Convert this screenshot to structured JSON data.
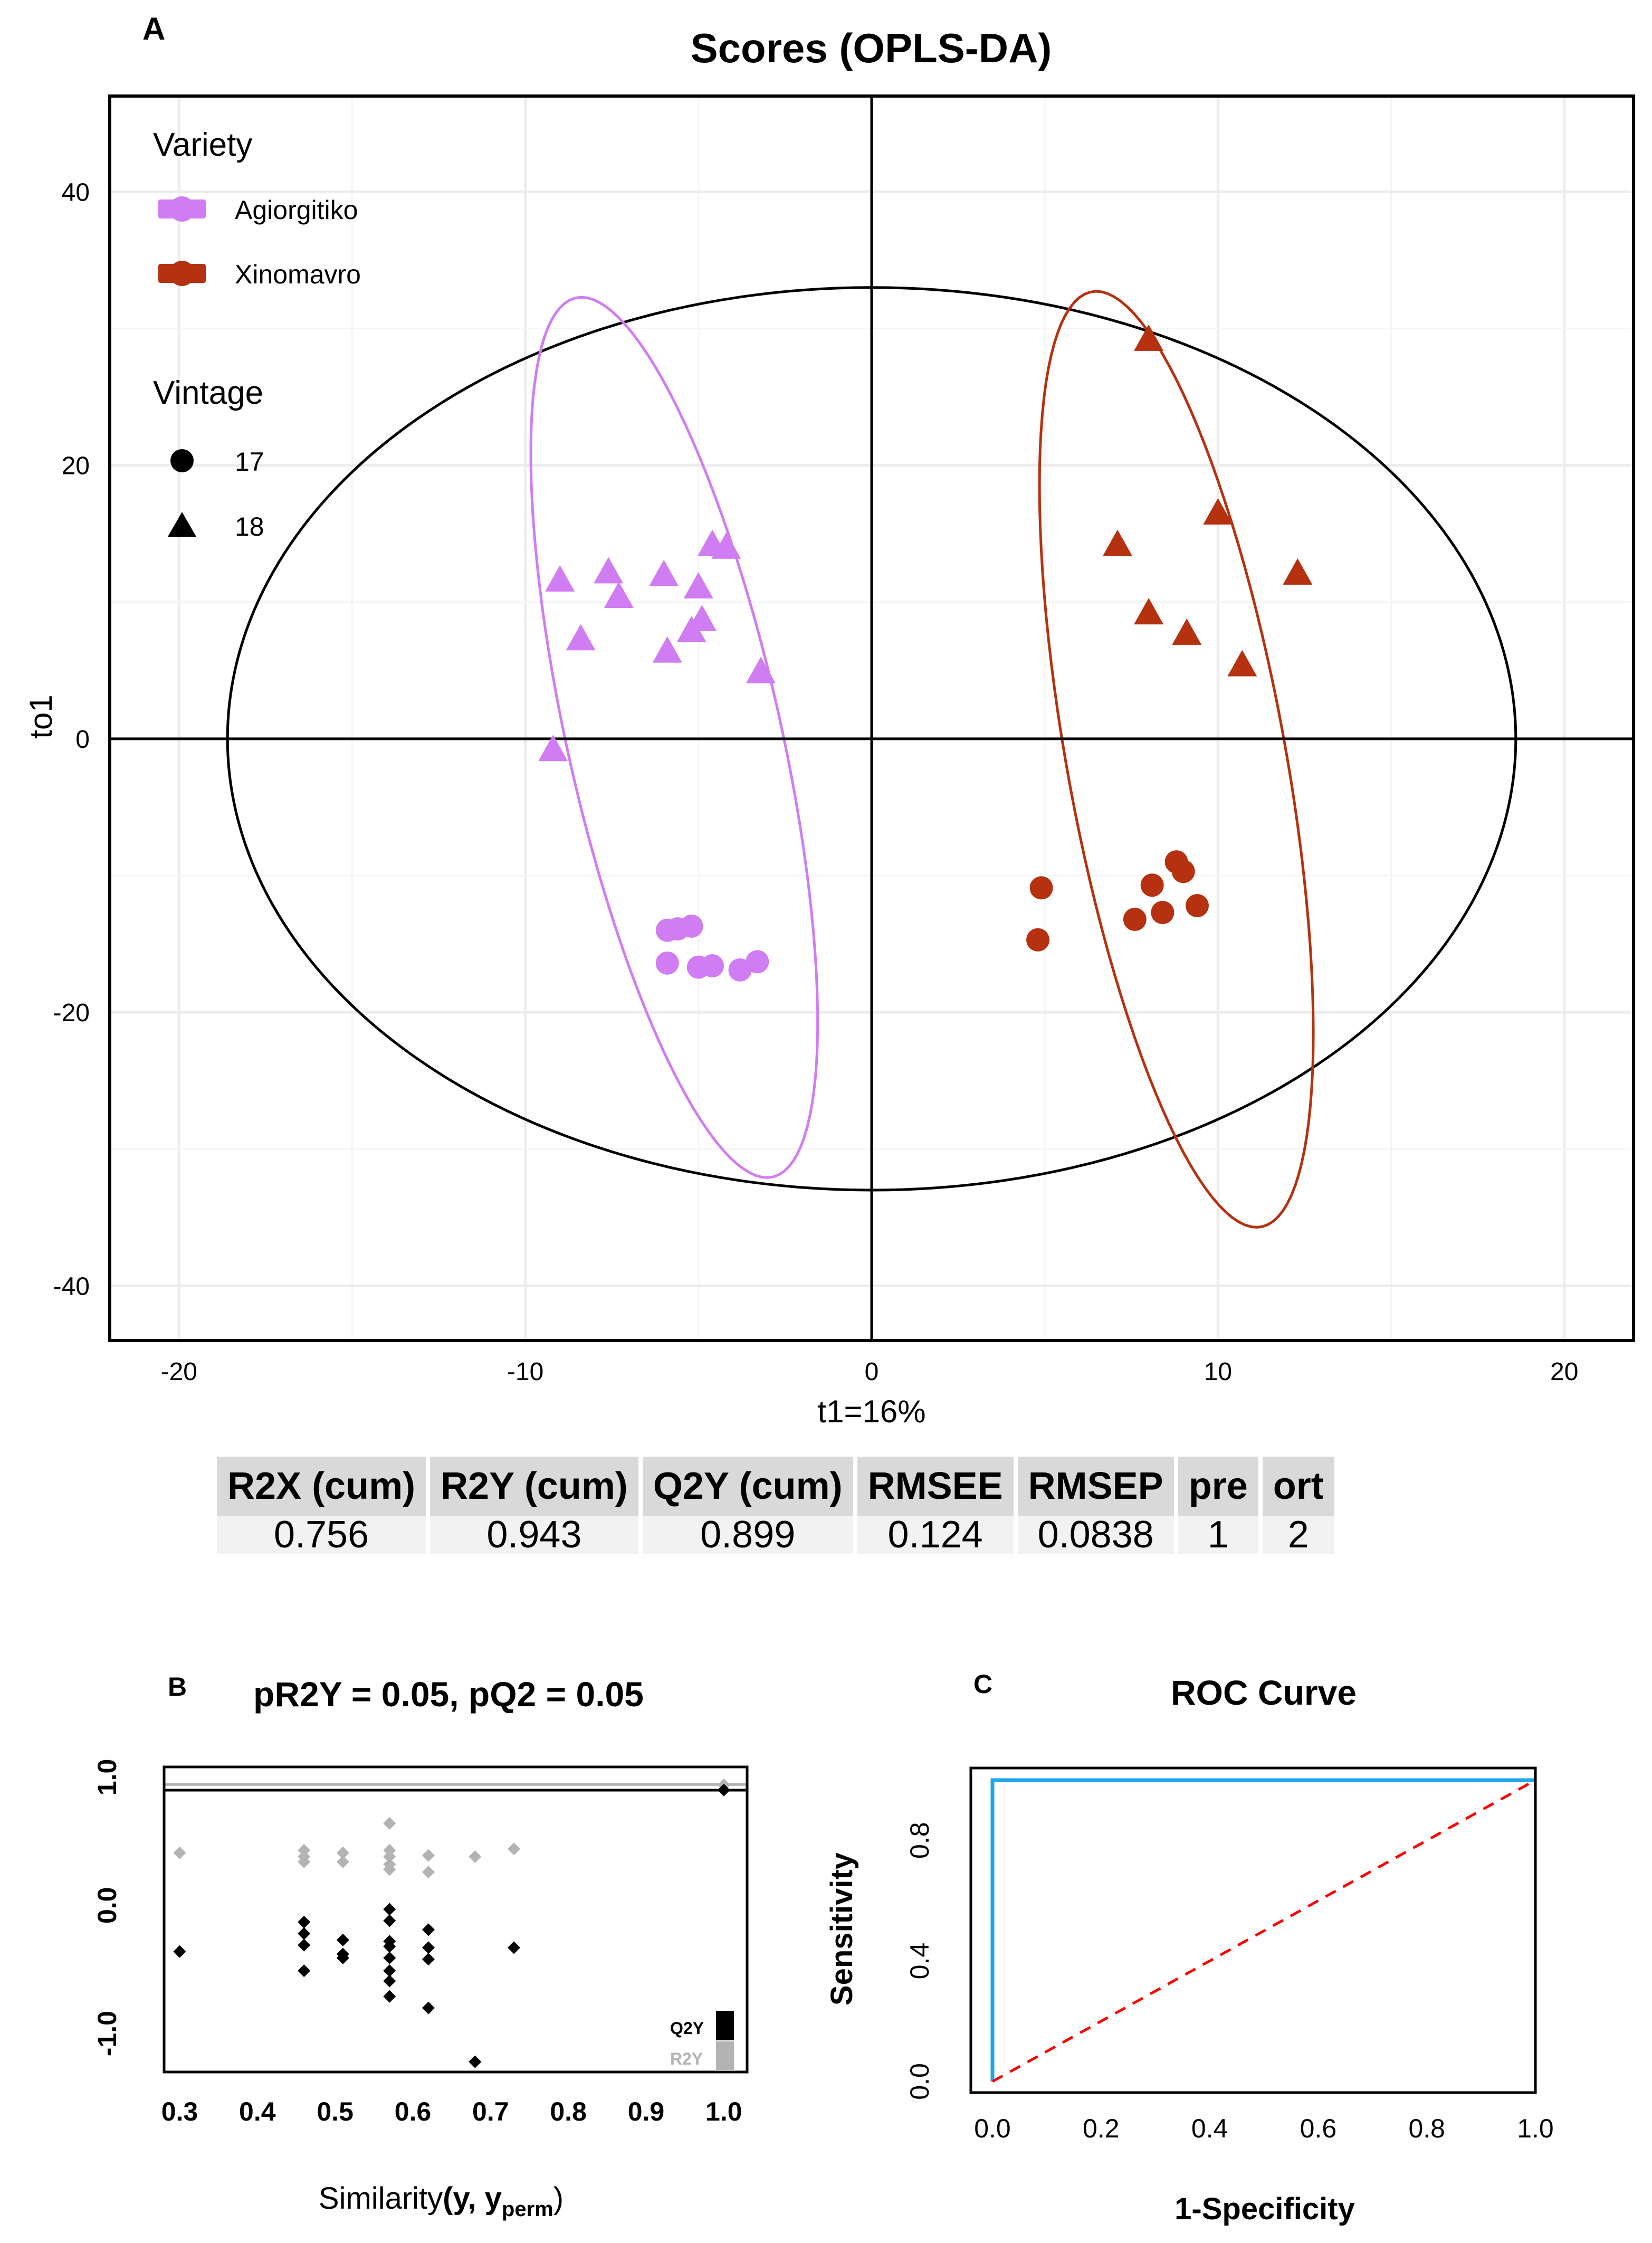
{
  "chart_data": [
    {
      "panel": "A",
      "type": "scatter",
      "title": "Scores (OPLS-DA)",
      "xlabel": "t1=16%",
      "ylabel": "to1",
      "xlim": [
        -22,
        22
      ],
      "ylim": [
        -44,
        47
      ],
      "xticks": [
        -20,
        -10,
        0,
        10,
        20
      ],
      "yticks": [
        -40,
        -20,
        0,
        20,
        40
      ],
      "grid": true,
      "legend_placement": "top-left",
      "legend": {
        "variety_title": "Variety",
        "varieties": [
          {
            "name": "Agiorgitiko",
            "color": "#d07cf2"
          },
          {
            "name": "Xinomavro",
            "color": "#b5310f"
          }
        ],
        "vintage_title": "Vintage",
        "vintages": [
          {
            "name": "17",
            "shape": "circle"
          },
          {
            "name": "18",
            "shape": "triangle"
          }
        ]
      },
      "series": [
        {
          "name": "Agiorgitiko",
          "vintage": "18",
          "shape": "triangle",
          "color": "#d07cf2",
          "x": [
            -9.0,
            -7.6,
            -7.3,
            -8.4,
            -6.0,
            -5.9,
            -5.0,
            -4.9,
            -5.2,
            -4.6,
            -4.2,
            -3.2,
            -9.2
          ],
          "y": [
            11.5,
            12.1,
            10.3,
            7.2,
            11.9,
            6.3,
            11.0,
            8.6,
            7.8,
            14.1,
            13.9,
            4.8,
            -0.9
          ]
        },
        {
          "name": "Agiorgitiko",
          "vintage": "17",
          "shape": "circle",
          "color": "#d07cf2",
          "x": [
            -5.9,
            -5.6,
            -5.2,
            -5.9,
            -5.0,
            -4.6,
            -3.8,
            -3.3
          ],
          "y": [
            -14.0,
            -13.9,
            -13.7,
            -16.4,
            -16.7,
            -16.6,
            -16.9,
            -16.3
          ]
        },
        {
          "name": "Xinomavro",
          "vintage": "18",
          "shape": "triangle",
          "color": "#b5310f",
          "x": [
            8.0,
            7.1,
            10.0,
            12.3,
            8.0,
            9.1,
            10.7
          ],
          "y": [
            29.1,
            14.1,
            16.4,
            12.0,
            9.1,
            7.6,
            5.3
          ]
        },
        {
          "name": "Xinomavro",
          "vintage": "17",
          "shape": "circle",
          "color": "#b5310f",
          "x": [
            4.9,
            4.8,
            8.1,
            8.8,
            9.0,
            7.6,
            8.4,
            9.4
          ],
          "y": [
            -10.9,
            -14.7,
            -10.7,
            -9.0,
            -9.7,
            -13.2,
            -12.7,
            -12.2
          ]
        }
      ],
      "ellipses": [
        {
          "name": "Hotelling T2",
          "color": "#000000",
          "center": [
            0,
            0
          ],
          "rx": 18.6,
          "ry": 33
        },
        {
          "name": "Agiorgitiko",
          "color": "#d07cf2",
          "center": [
            -5.7,
            0.1
          ],
          "semi_major": 32.3,
          "semi_minor": 3.15,
          "angle_deg_from_vertical": 4.8
        },
        {
          "name": "Xinomavro",
          "color": "#b5310f",
          "center": [
            8.8,
            -1.5
          ],
          "semi_major": 34.3,
          "semi_minor": 3.2,
          "angle_deg_from_vertical": 3.9
        }
      ],
      "table": {
        "headers": [
          "R2X (cum)",
          "R2Y (cum)",
          "Q2Y (cum)",
          "RMSEE",
          "RMSEP",
          "pre",
          "ort"
        ],
        "values": [
          "0.756",
          "0.943",
          "0.899",
          "0.124",
          "0.0838",
          "1",
          "2"
        ]
      }
    },
    {
      "panel": "B",
      "type": "scatter",
      "title": "pR2Y = 0.05, pQ2 = 0.05",
      "xlabel_text": "Similarity",
      "xlabel_args": "(y, y",
      "xlabel_sub": "perm",
      "xlabel_close": ")",
      "xlim": [
        0.28,
        1.03
      ],
      "ylim": [
        -1.3,
        1.08
      ],
      "xticks": [
        "0.3",
        "0.4",
        "0.5",
        "0.6",
        "0.7",
        "0.8",
        "0.9",
        "1.0"
      ],
      "yticks": [
        "-1.0",
        "0.0",
        "1.0"
      ],
      "legend_placement": "bottom-right",
      "series": [
        {
          "name": "R2Y",
          "color": "#b3b3b3",
          "x": [
            0.3,
            0.46,
            0.46,
            0.46,
            0.51,
            0.51,
            0.57,
            0.57,
            0.57,
            0.57,
            0.57,
            0.62,
            0.62,
            0.68,
            0.73,
            1.0
          ],
          "y": [
            0.41,
            0.43,
            0.38,
            0.34,
            0.41,
            0.34,
            0.64,
            0.43,
            0.38,
            0.32,
            0.28,
            0.39,
            0.26,
            0.38,
            0.44,
            0.94
          ]
        },
        {
          "name": "Q2Y",
          "color": "#000000",
          "x": [
            0.3,
            0.46,
            0.46,
            0.46,
            0.46,
            0.51,
            0.51,
            0.51,
            0.57,
            0.57,
            0.57,
            0.57,
            0.57,
            0.57,
            0.57,
            0.57,
            0.62,
            0.62,
            0.62,
            0.62,
            0.68,
            0.73,
            1.0
          ],
          "y": [
            -0.36,
            -0.13,
            -0.22,
            -0.31,
            -0.51,
            -0.27,
            -0.38,
            -0.41,
            -0.03,
            -0.12,
            -0.28,
            -0.32,
            -0.41,
            -0.51,
            -0.59,
            -0.71,
            -0.19,
            -0.33,
            -0.42,
            -0.8,
            -1.22,
            -0.33,
            0.9
          ]
        }
      ],
      "hlines": [
        {
          "y": 0.943,
          "color": "#b3b3b3"
        },
        {
          "y": 0.899,
          "color": "#000000"
        }
      ]
    },
    {
      "panel": "C",
      "type": "line",
      "title": "ROC Curve",
      "xlabel": "1-Specificity",
      "ylabel": "Sensitivity",
      "xlim": [
        0,
        1
      ],
      "ylim": [
        0,
        1
      ],
      "xticks": [
        "0.0",
        "0.2",
        "0.4",
        "0.6",
        "0.8",
        "1.0"
      ],
      "yticks": [
        "0.0",
        "0.4",
        "0.8"
      ],
      "series": [
        {
          "name": "ROC",
          "color": "#1ea7e8",
          "style": "solid",
          "x": [
            0,
            0,
            1
          ],
          "y": [
            0,
            1,
            1
          ]
        },
        {
          "name": "chance",
          "color": "#ff0000",
          "style": "dashed",
          "x": [
            0,
            1
          ],
          "y": [
            0,
            1
          ]
        }
      ]
    }
  ]
}
